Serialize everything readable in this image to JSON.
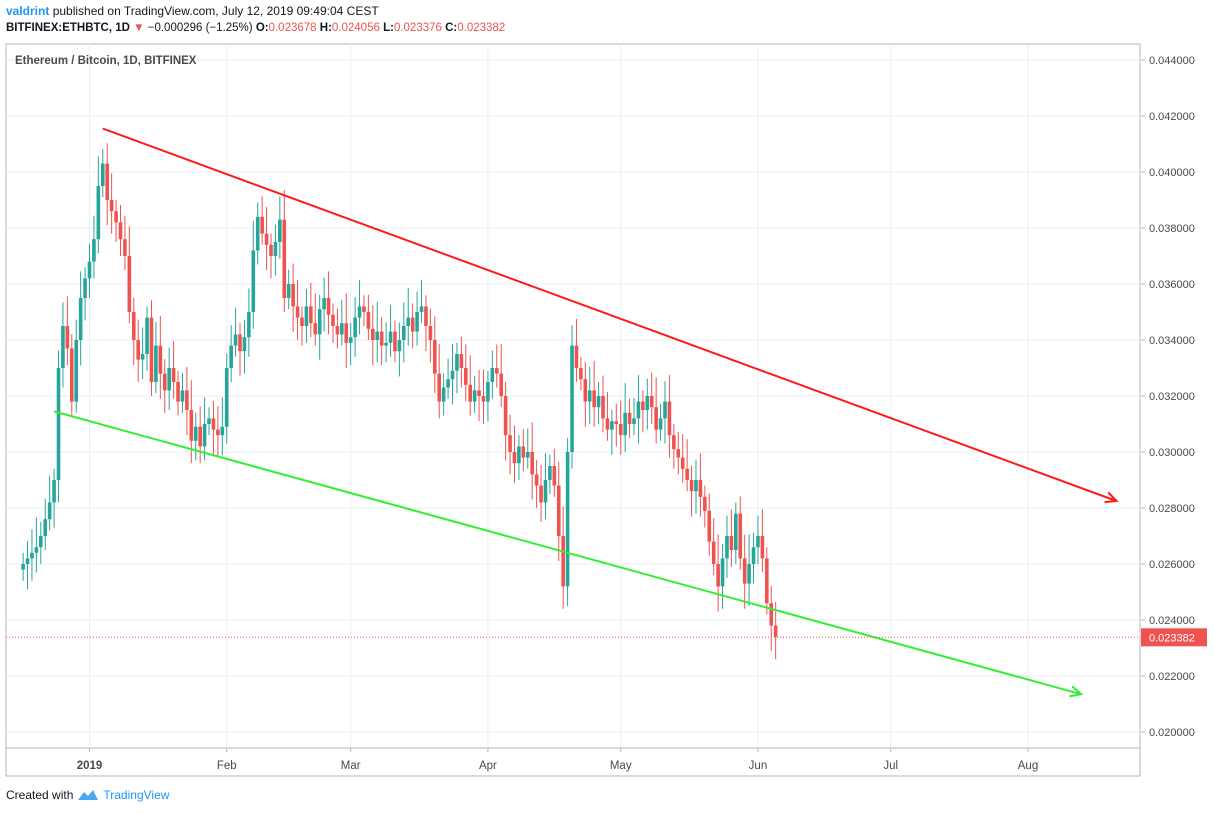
{
  "header": {
    "user": "valdrint",
    "published_text": "published on TradingView.com, July 12, 2019 09:49:04 CEST",
    "symbol_line": "BITFINEX:ETHBTC, 1D",
    "change_arrow": "▼",
    "change": "−0.000296 (−1.25%)",
    "o_label": "O:",
    "o_value": "0.023678",
    "h_label": "H:",
    "h_value": "0.024056",
    "l_label": "L:",
    "l_value": "0.023376",
    "c_label": "C:",
    "c_value": "0.023382"
  },
  "footer": {
    "created_with": "Created with",
    "brand": "TradingView",
    "icon": "tradingview-logo-icon"
  },
  "colors": {
    "up": "#26a69a",
    "down": "#ef5350",
    "resistance": "#ff1a1a",
    "support": "#33ee33",
    "grid": "#e9eff5"
  },
  "chart_data": {
    "type": "candlestick",
    "title": "Ethereum / Bitcoin, 1D, BITFINEX",
    "y_ticks": [
      "0.044000",
      "0.042000",
      "0.040000",
      "0.038000",
      "0.036000",
      "0.034000",
      "0.032000",
      "0.030000",
      "0.028000",
      "0.026000",
      "0.024000",
      "0.022000",
      "0.020000"
    ],
    "x_ticks": [
      {
        "label": "2019",
        "date": "2019-01-01"
      },
      {
        "label": "Feb",
        "date": "2019-02-01"
      },
      {
        "label": "Mar",
        "date": "2019-03-01"
      },
      {
        "label": "Apr",
        "date": "2019-04-01"
      },
      {
        "label": "May",
        "date": "2019-05-01"
      },
      {
        "label": "Jun",
        "date": "2019-06-01"
      },
      {
        "label": "Jul",
        "date": "2019-07-01"
      },
      {
        "label": "Aug",
        "date": "2019-08-01"
      }
    ],
    "last_price": "0.023382",
    "trendlines": [
      {
        "name": "resistance",
        "from": {
          "date": "2019-01-04",
          "price": 0.04155
        },
        "to": {
          "date": "2019-08-21",
          "price": 0.02825
        }
      },
      {
        "name": "support",
        "from": {
          "date": "2018-12-24",
          "price": 0.03145
        },
        "to": {
          "date": "2019-08-13",
          "price": 0.02135
        }
      }
    ],
    "closes": [
      0.026,
      0.0262,
      0.0264,
      0.0266,
      0.027,
      0.0276,
      0.0282,
      0.029,
      0.033,
      0.0345,
      0.0337,
      0.0318,
      0.034,
      0.0355,
      0.0362,
      0.0368,
      0.0376,
      0.0395,
      0.0403,
      0.039,
      0.0386,
      0.0382,
      0.0376,
      0.037,
      0.035,
      0.034,
      0.0333,
      0.0335,
      0.0348,
      0.0325,
      0.0338,
      0.0328,
      0.0322,
      0.033,
      0.0325,
      0.0318,
      0.0322,
      0.0315,
      0.0304,
      0.0309,
      0.0302,
      0.031,
      0.0312,
      0.0308,
      0.0306,
      0.0309,
      0.033,
      0.0338,
      0.0342,
      0.0336,
      0.0341,
      0.035,
      0.0372,
      0.0384,
      0.0378,
      0.0374,
      0.037,
      0.0375,
      0.0383,
      0.0355,
      0.036,
      0.0352,
      0.0348,
      0.0345,
      0.0352,
      0.0346,
      0.0342,
      0.0351,
      0.0355,
      0.0349,
      0.0345,
      0.0342,
      0.0346,
      0.0339,
      0.0341,
      0.0348,
      0.0352,
      0.035,
      0.0344,
      0.034,
      0.0343,
      0.0338,
      0.0339,
      0.0343,
      0.0336,
      0.034,
      0.0345,
      0.0348,
      0.0343,
      0.035,
      0.0352,
      0.0345,
      0.034,
      0.0328,
      0.0318,
      0.0323,
      0.0326,
      0.0329,
      0.0335,
      0.033,
      0.0324,
      0.0318,
      0.0322,
      0.032,
      0.0318,
      0.0325,
      0.033,
      0.0328,
      0.032,
      0.0306,
      0.03,
      0.0296,
      0.0302,
      0.0298,
      0.03,
      0.0292,
      0.0288,
      0.0282,
      0.029,
      0.0295,
      0.0288,
      0.027,
      0.0252,
      0.03,
      0.0338,
      0.033,
      0.0326,
      0.0318,
      0.0322,
      0.0316,
      0.032,
      0.0312,
      0.0308,
      0.0311,
      0.031,
      0.0306,
      0.0314,
      0.031,
      0.0312,
      0.0318,
      0.0315,
      0.032,
      0.0316,
      0.0308,
      0.0312,
      0.0318,
      0.0306,
      0.0301,
      0.0298,
      0.0294,
      0.029,
      0.0286,
      0.029,
      0.0284,
      0.0279,
      0.0268,
      0.026,
      0.0252,
      0.0262,
      0.027,
      0.0265,
      0.0278,
      0.0262,
      0.0253,
      0.026,
      0.0266,
      0.027,
      0.0262,
      0.0246,
      0.0238,
      0.0234
    ]
  }
}
